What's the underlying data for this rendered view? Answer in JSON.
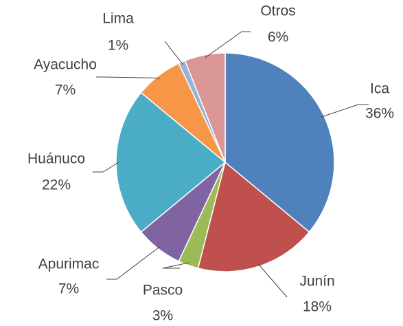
{
  "chart_data": {
    "type": "pie",
    "categories": [
      "Ica",
      "Junín",
      "Pasco",
      "Apurimac",
      "Huánuco",
      "Ayacucho",
      "Lima",
      "Otros"
    ],
    "values": [
      36,
      18,
      3,
      7,
      22,
      7,
      1,
      6
    ],
    "value_labels": [
      "36%",
      "18%",
      "3%",
      "7%",
      "22%",
      "7%",
      "1%",
      "6%"
    ],
    "colors": [
      "#4f81bd",
      "#c0504d",
      "#9bbb59",
      "#8064a2",
      "#4bacc6",
      "#f79646",
      "#95b3d7",
      "#d99694"
    ]
  }
}
